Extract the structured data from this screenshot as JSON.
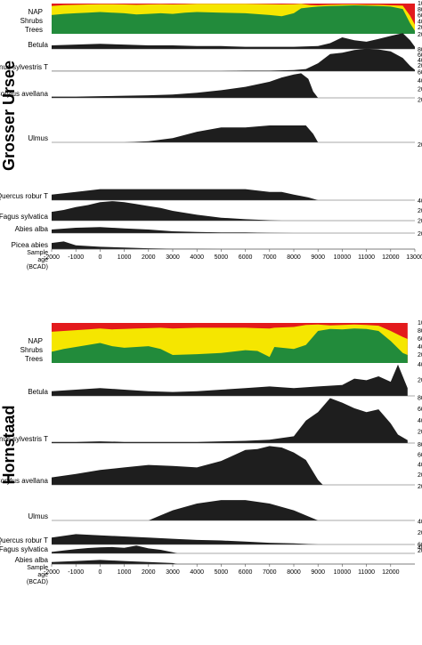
{
  "chart_data": [
    {
      "type": "area",
      "title": "Grosser Ursee",
      "age_axis_label": [
        "Sample",
        "age",
        "(BCAD)"
      ],
      "age_ticks": [
        -2000,
        -1000,
        0,
        1000,
        2000,
        3000,
        4000,
        5000,
        6000,
        7000,
        8000,
        9000,
        10000,
        11000,
        12000,
        13000
      ],
      "age_range": [
        -2000,
        13000
      ],
      "grid": true,
      "composition": {
        "labels": [
          "Trees",
          "Shrubs",
          "NAP"
        ],
        "colors": [
          "#228b3b",
          "#f5e600",
          "#e31a1c"
        ],
        "scale_ticks": [
          20,
          40,
          60,
          80,
          100
        ],
        "trees_pct": {
          "age": [
            -2000,
            -1500,
            -1000,
            -500,
            0,
            500,
            1000,
            1500,
            2000,
            2500,
            3000,
            3500,
            4000,
            5000,
            6000,
            7000,
            7500,
            8000,
            8300,
            8700,
            9000,
            9500,
            10000,
            10500,
            11000,
            11500,
            12000,
            12500,
            12800,
            13000
          ],
          "value": [
            62,
            66,
            68,
            70,
            72,
            70,
            68,
            64,
            66,
            68,
            66,
            70,
            72,
            70,
            68,
            62,
            58,
            68,
            84,
            88,
            90,
            92,
            93,
            94,
            93,
            92,
            90,
            82,
            35,
            10
          ]
        },
        "shrubs_top": {
          "age": [
            -2000,
            -1500,
            -1000,
            -500,
            0,
            500,
            1000,
            1500,
            2000,
            2500,
            3000,
            3500,
            4000,
            5000,
            6000,
            7000,
            7500,
            8000,
            8300,
            8700,
            9000,
            9500,
            10000,
            10500,
            11000,
            11500,
            12000,
            12500,
            12800,
            13000
          ],
          "value": [
            92,
            95,
            96,
            97,
            98,
            98,
            97,
            96,
            97,
            98,
            97,
            98,
            99,
            99,
            99,
            98,
            97,
            98,
            99,
            95,
            94,
            96,
            97,
            97,
            96,
            96,
            94,
            93,
            60,
            30
          ]
        }
      },
      "taxa": [
        {
          "name": "Betula",
          "scale_ticks": [
            20
          ],
          "age": [
            -2000,
            -1000,
            0,
            1000,
            2000,
            3000,
            4000,
            5000,
            6000,
            7000,
            8000,
            9000,
            9500,
            10000,
            10500,
            11000,
            11500,
            12000,
            12500,
            12800,
            13000
          ],
          "value": [
            5,
            6,
            7,
            6,
            5,
            5,
            4,
            4,
            3,
            3,
            3,
            4,
            8,
            16,
            12,
            10,
            14,
            18,
            22,
            12,
            3
          ]
        },
        {
          "name": "Pinus sylvestris T",
          "scale_ticks": [
            20,
            40,
            60,
            80
          ],
          "age": [
            -2000,
            -1000,
            0,
            1000,
            2000,
            3000,
            4000,
            5000,
            6000,
            7000,
            8000,
            8500,
            9000,
            9500,
            10000,
            10500,
            11000,
            11500,
            12000,
            12500,
            12800,
            13000
          ],
          "value": [
            1,
            1,
            1,
            1,
            1,
            1,
            1,
            1,
            2,
            2,
            4,
            8,
            30,
            65,
            70,
            80,
            85,
            82,
            75,
            50,
            20,
            5
          ]
        },
        {
          "name": "Corylus avellana",
          "scale_ticks": [
            20,
            40,
            60
          ],
          "age": [
            -2000,
            -1000,
            0,
            1000,
            2000,
            3000,
            4000,
            5000,
            6000,
            7000,
            7500,
            8000,
            8300,
            8600,
            8800,
            9000
          ],
          "value": [
            3,
            3,
            4,
            5,
            6,
            8,
            12,
            18,
            26,
            38,
            48,
            55,
            58,
            45,
            15,
            0
          ]
        },
        {
          "name": "Ulmus",
          "scale_ticks": [
            20
          ],
          "age": [
            -2000,
            1000,
            2000,
            3000,
            4000,
            5000,
            6000,
            7000,
            8000,
            8500,
            8800,
            9000
          ],
          "value": [
            0,
            0,
            0.5,
            2,
            5,
            7,
            7,
            8,
            8,
            8,
            4,
            0
          ]
        },
        {
          "name": "Quercus robur T",
          "scale_ticks": [
            20
          ],
          "age": [
            -2000,
            -1000,
            0,
            1000,
            2000,
            3000,
            4000,
            5000,
            6000,
            7000,
            7500,
            8000,
            8600,
            9000
          ],
          "value": [
            2,
            3,
            4,
            4,
            4,
            4,
            4,
            4,
            4,
            3,
            3,
            2,
            1,
            0
          ]
        },
        {
          "name": "Fagus sylvatica",
          "scale_ticks": [
            20,
            40
          ],
          "age": [
            -2000,
            -1500,
            -1000,
            -500,
            0,
            500,
            1000,
            1500,
            2000,
            2500,
            3000,
            4000,
            5000,
            6000,
            7000,
            7500
          ],
          "value": [
            18,
            22,
            28,
            32,
            38,
            40,
            38,
            34,
            30,
            26,
            20,
            12,
            6,
            3,
            1,
            0
          ]
        },
        {
          "name": "Abies alba",
          "scale_ticks": [
            20
          ],
          "age": [
            -2000,
            -1000,
            0,
            1000,
            2000,
            3000,
            4000,
            5000,
            6000,
            7000,
            8000
          ],
          "value": [
            6,
            9,
            10,
            8,
            6,
            3,
            2,
            1,
            1,
            0.5,
            0
          ]
        },
        {
          "name": "Picea abies",
          "scale_ticks": [
            20
          ],
          "age": [
            -2000,
            -1500,
            -1000,
            0,
            1000,
            2000,
            3000,
            4000,
            5000
          ],
          "value": [
            8,
            10,
            5,
            3,
            2,
            1,
            0.5,
            0.5,
            0
          ]
        }
      ]
    },
    {
      "type": "area",
      "title": "Hornstaad",
      "age_axis_label": [
        "Sample",
        "age",
        "(BCAD)"
      ],
      "age_ticks": [
        -2000,
        -1000,
        0,
        1000,
        2000,
        3000,
        4000,
        5000,
        6000,
        7000,
        8000,
        9000,
        10000,
        11000,
        12000
      ],
      "age_range": [
        -2000,
        13000
      ],
      "grid": true,
      "composition": {
        "labels": [
          "Trees",
          "Shrubs",
          "NAP"
        ],
        "colors": [
          "#228b3b",
          "#f5e600",
          "#e31a1c"
        ],
        "scale_ticks": [
          20,
          40,
          60,
          80,
          100
        ],
        "trees_pct": {
          "age": [
            -2000,
            -1500,
            -1000,
            -500,
            0,
            500,
            1000,
            1500,
            2000,
            2500,
            3000,
            4000,
            5000,
            6000,
            6500,
            7000,
            7200,
            8000,
            8500,
            9000,
            9500,
            10000,
            10500,
            11000,
            11500,
            12000,
            12500,
            12700
          ],
          "value": [
            28,
            35,
            40,
            45,
            50,
            42,
            38,
            40,
            42,
            35,
            20,
            22,
            25,
            32,
            30,
            15,
            40,
            35,
            45,
            80,
            85,
            84,
            86,
            85,
            80,
            55,
            25,
            20
          ]
        },
        "shrubs_top": {
          "age": [
            -2000,
            -1500,
            -1000,
            -500,
            0,
            500,
            1000,
            1500,
            2000,
            2500,
            3000,
            4000,
            5000,
            6000,
            6500,
            7000,
            7200,
            8000,
            8500,
            9000,
            9500,
            10000,
            10500,
            11000,
            11500,
            12000,
            12500,
            12700
          ],
          "value": [
            78,
            80,
            82,
            84,
            86,
            84,
            85,
            86,
            87,
            88,
            86,
            88,
            88,
            88,
            87,
            86,
            88,
            90,
            95,
            96,
            94,
            95,
            96,
            95,
            93,
            80,
            65,
            60
          ]
        }
      },
      "taxa": [
        {
          "name": "Betula",
          "scale_ticks": [
            20,
            40
          ],
          "age": [
            -2000,
            -1000,
            0,
            1000,
            2000,
            3000,
            4000,
            5000,
            6000,
            7000,
            8000,
            9000,
            10000,
            10500,
            11000,
            11500,
            12000,
            12300,
            12700
          ],
          "value": [
            6,
            8,
            10,
            8,
            6,
            5,
            6,
            8,
            10,
            12,
            10,
            12,
            14,
            22,
            20,
            25,
            18,
            40,
            10
          ]
        },
        {
          "name": "Pinus sylvestris T",
          "scale_ticks": [
            20,
            40,
            60,
            80
          ],
          "age": [
            -2000,
            -1000,
            0,
            1000,
            2000,
            3000,
            4000,
            5000,
            6000,
            7000,
            8000,
            8500,
            9000,
            9500,
            10000,
            10500,
            11000,
            11500,
            12000,
            12300,
            12700
          ],
          "value": [
            2,
            2,
            3,
            2,
            2,
            2,
            2,
            3,
            4,
            6,
            12,
            40,
            55,
            80,
            72,
            62,
            55,
            60,
            35,
            15,
            5
          ]
        },
        {
          "name": "Corylus avellana",
          "scale_ticks": [
            20,
            40,
            60,
            80
          ],
          "age": [
            -2000,
            -1000,
            0,
            1000,
            2000,
            3000,
            4000,
            5000,
            6000,
            6500,
            7000,
            7500,
            8000,
            8500,
            9000,
            9200
          ],
          "value": [
            15,
            22,
            30,
            35,
            40,
            38,
            35,
            48,
            70,
            72,
            78,
            75,
            65,
            50,
            10,
            0
          ]
        },
        {
          "name": "Ulmus",
          "scale_ticks": [
            20
          ],
          "age": [
            -2000,
            2000,
            2500,
            3000,
            4000,
            5000,
            6000,
            7000,
            8000,
            9000
          ],
          "value": [
            0,
            0,
            3,
            6,
            10,
            12,
            12,
            10,
            6,
            0
          ]
        },
        {
          "name": "Quercus robur T",
          "scale_ticks": [
            20,
            40
          ],
          "age": [
            -2000,
            -1000,
            0,
            1000,
            2000,
            3000,
            4000,
            5000,
            6000,
            7000,
            8000,
            9000
          ],
          "value": [
            12,
            18,
            16,
            14,
            12,
            10,
            8,
            7,
            5,
            3,
            2,
            0
          ]
        },
        {
          "name": "Fagus sylvatica",
          "scale_ticks": [
            20,
            40,
            60
          ],
          "age": [
            -2000,
            -1500,
            -1000,
            -500,
            0,
            500,
            1000,
            1500,
            2000,
            2500,
            3000,
            3200
          ],
          "value": [
            10,
            20,
            30,
            38,
            42,
            45,
            40,
            55,
            35,
            25,
            8,
            0
          ]
        },
        {
          "name": "Abies alba",
          "scale_ticks": [],
          "age": [
            -2000,
            -1000,
            0,
            1000,
            2000,
            3000,
            3200
          ],
          "value": [
            4,
            6,
            8,
            6,
            4,
            2,
            0
          ]
        },
        {
          "name": "Picea abies",
          "scale_ticks": [
            20
          ],
          "age": [
            -2000,
            -1000,
            0,
            1000,
            2000,
            3000,
            3200
          ],
          "value": [
            8,
            10,
            12,
            9,
            7,
            3,
            0
          ]
        }
      ]
    }
  ]
}
